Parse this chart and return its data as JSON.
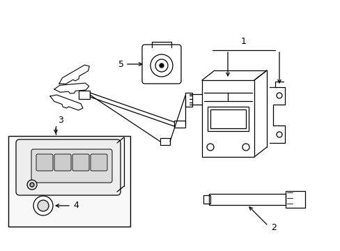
{
  "background_color": "#ffffff",
  "line_color": "#000000",
  "fig_width": 4.89,
  "fig_height": 3.6,
  "dpi": 100,
  "label_fontsize": 9
}
